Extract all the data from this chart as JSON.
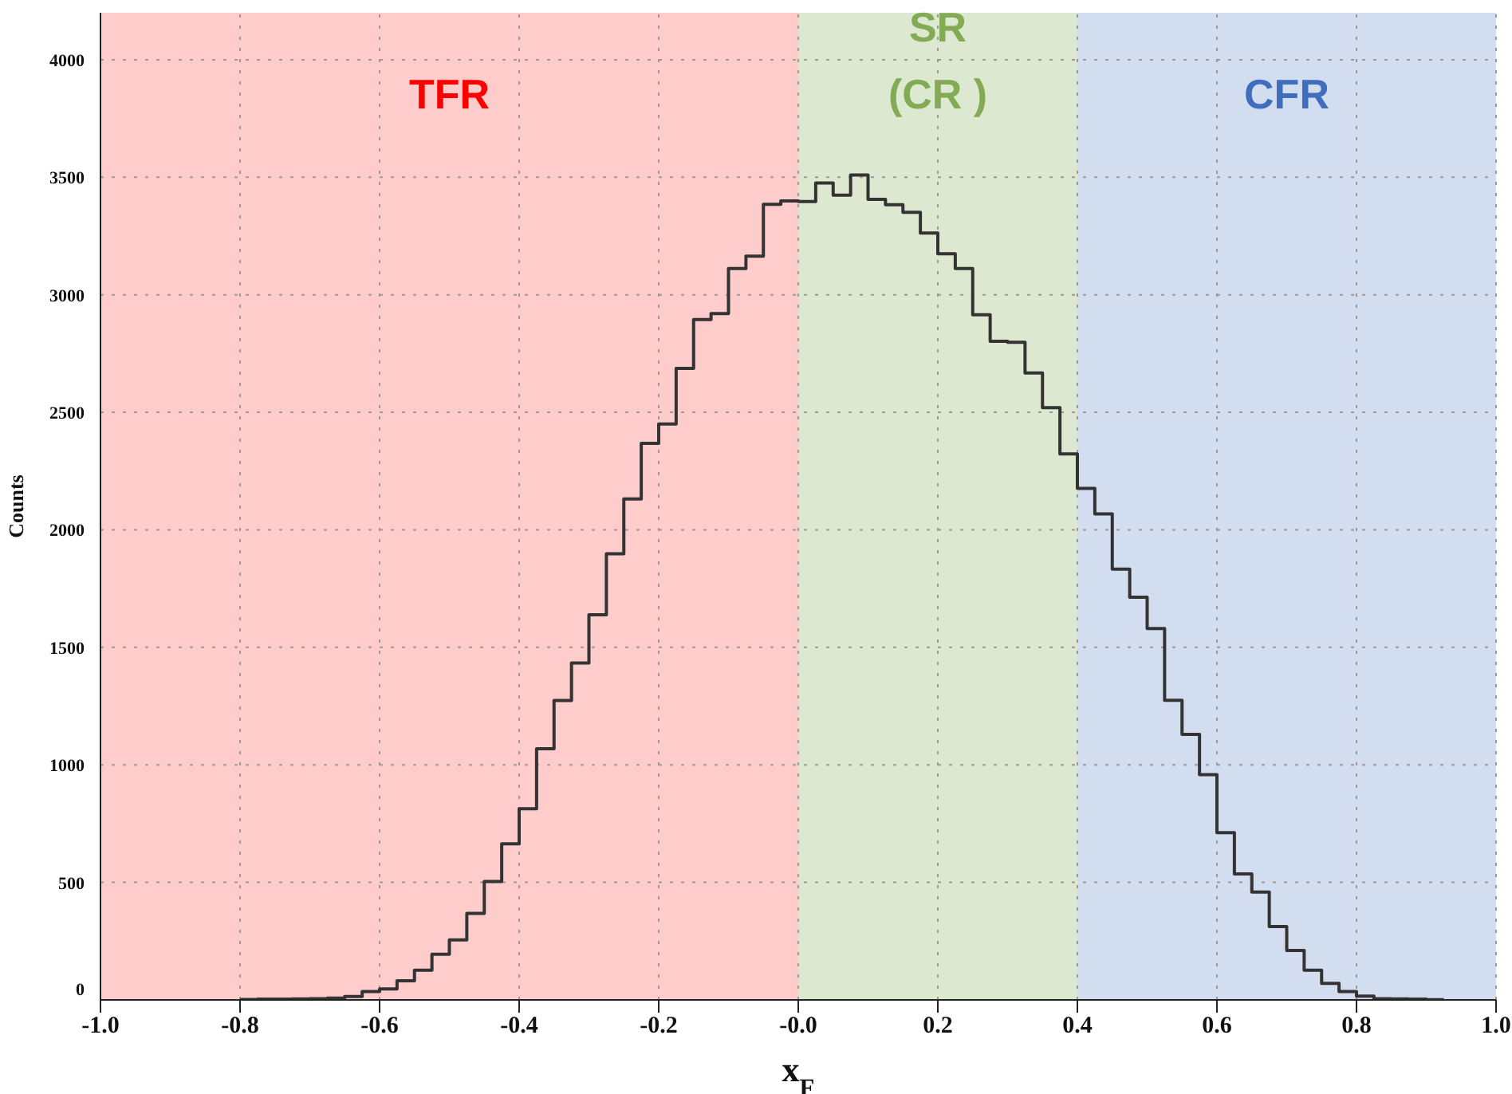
{
  "chart_data": {
    "type": "histogram",
    "xlabel": "x$_{F}$",
    "ylabel": "Counts",
    "bins": [
      -0.8,
      -0.775,
      -0.75,
      -0.725,
      -0.7,
      -0.675,
      -0.65,
      -0.625,
      -0.6,
      -0.575,
      -0.55,
      -0.525,
      -0.5,
      -0.475,
      -0.45,
      -0.425,
      -0.4,
      -0.375,
      -0.35,
      -0.325,
      -0.3,
      -0.275,
      -0.25,
      -0.225,
      -0.2,
      -0.175,
      -0.15,
      -0.125,
      -0.1,
      -0.075,
      -0.05,
      -0.025,
      0,
      0.025,
      0.05,
      0.075,
      0.1,
      0.125,
      0.15,
      0.175,
      0.2,
      0.225,
      0.25,
      0.275,
      0.3,
      0.325,
      0.35,
      0.375,
      0.4,
      0.425,
      0.45,
      0.475,
      0.5,
      0.525,
      0.55,
      0.575,
      0.6,
      0.625,
      0.65,
      0.675,
      0.7,
      0.725,
      0.75,
      0.775,
      0.8,
      0.825,
      0.85,
      0.875,
      0.9,
      0.925
    ],
    "values": [
      2,
      3,
      3,
      4,
      5,
      8,
      14,
      36,
      47,
      81,
      126,
      194,
      255,
      368,
      504,
      664,
      813,
      1069,
      1274,
      1433,
      1639,
      1898,
      2131,
      2368,
      2450,
      2687,
      2895,
      2920,
      3112,
      3164,
      3385,
      3399,
      3397,
      3476,
      3424,
      3510,
      3406,
      3383,
      3351,
      3263,
      3175,
      3112,
      2915,
      2802,
      2798,
      2667,
      2520,
      2323,
      2176,
      2068,
      1833,
      1713,
      1580,
      1275,
      1130,
      958,
      712,
      536,
      459,
      312,
      210,
      126,
      70,
      36,
      16,
      5,
      4,
      3,
      1
    ],
    "color": "#333333",
    "xlim": [
      -1,
      1
    ],
    "xticks": [
      {
        "value": -1,
        "label": "-1.0"
      },
      {
        "value": -0.8,
        "label": "-0.8"
      },
      {
        "value": -0.6,
        "label": "-0.6"
      },
      {
        "value": -0.4,
        "label": "-0.4"
      },
      {
        "value": -0.2,
        "label": "-0.2"
      },
      {
        "value": 0,
        "label": "-0.0"
      },
      {
        "value": 0.2,
        "label": "0.2"
      },
      {
        "value": 0.4,
        "label": "0.4"
      },
      {
        "value": 0.6,
        "label": "0.6"
      },
      {
        "value": 0.8,
        "label": "0.8"
      },
      {
        "value": 1,
        "label": "1.0"
      }
    ],
    "ylim": [
      0,
      4200
    ],
    "yticks": [
      0,
      500,
      1000,
      1500,
      2000,
      2500,
      3000,
      3500,
      4000
    ],
    "grid": true,
    "bands": [
      {
        "axis": "x",
        "from": -1,
        "to": 0,
        "label": "TFR",
        "color": "#ffcccc"
      },
      {
        "axis": "x",
        "from": 0,
        "to": 0.4,
        "label": "SR\n(CR )",
        "color": "#dde8d0"
      },
      {
        "axis": "x",
        "from": 0.4,
        "to": 1,
        "label": "CFR",
        "color": "#d3ddf0"
      }
    ]
  }
}
